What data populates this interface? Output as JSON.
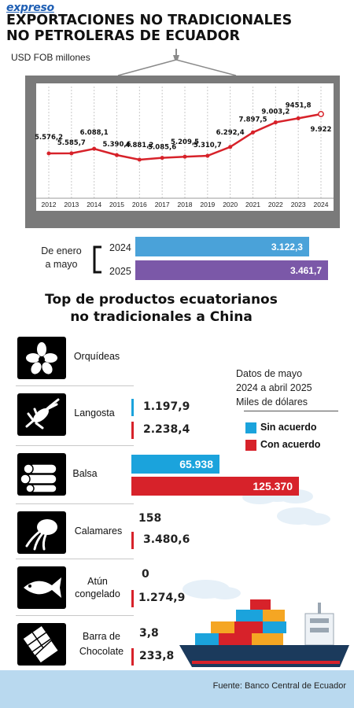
{
  "header": {
    "brand": "expreso",
    "title_line1": "EXPORTACIONES NO TRADICIONALES",
    "title_line2": "NO PETROLERAS DE ECUADOR"
  },
  "colors": {
    "line": "#d7222a",
    "frame": "#7a7a7a",
    "bar_2024": "#4aa2d9",
    "bar_2025": "#7b58a8",
    "sin_acuerdo": "#1ba3dc",
    "con_acuerdo": "#d7222a"
  },
  "chart_data": [
    {
      "type": "line",
      "ylabel": "USD FOB millones",
      "x": [
        "2012",
        "2013",
        "2014",
        "2015",
        "2016",
        "2017",
        "2018",
        "2019",
        "2020",
        "2021",
        "2022",
        "2023",
        "2024"
      ],
      "values": [
        5576.2,
        5585.7,
        6088.1,
        5390.6,
        4881.2,
        5085.6,
        5209.5,
        5310.7,
        6292.4,
        7897.5,
        9003.2,
        9451.8,
        9922
      ],
      "value_labels": [
        "5.576,2",
        "5.585,7",
        "6.088,1",
        "5.390,6",
        "4.881,2",
        "5.085,6",
        "5.209,5",
        "5.310,7",
        "6.292,4",
        "7.897,5",
        "9.003,2",
        "9451,8",
        "9.922"
      ],
      "grid": true
    },
    {
      "type": "bar",
      "orientation": "horizontal",
      "group_label_line1": "De enero",
      "group_label_line2": "a mayo",
      "categories": [
        "2024",
        "2025"
      ],
      "values": [
        3122.3,
        3461.7
      ],
      "value_labels": [
        "3.122,3",
        "3.461,7"
      ]
    },
    {
      "type": "bar",
      "orientation": "horizontal",
      "title_line1": "Top de productos ecuatorianos",
      "title_line2": "no tradicionales a China",
      "note_line1": "Datos de mayo",
      "note_line2": "2024 a abril 2025",
      "note_line3": "Miles de dólares",
      "legend": [
        "Sin acuerdo",
        "Con acuerdo"
      ],
      "legend_position": "right",
      "categories": [
        "Orquídeas",
        "Langosta",
        "Balsa",
        "Calamares",
        "Atún congelado",
        "Barra de Chocolate"
      ],
      "series": [
        {
          "name": "Sin acuerdo",
          "values": [
            null,
            1197.9,
            65938,
            158,
            0,
            3.8
          ],
          "labels": [
            "",
            "1.197,9",
            "65.938",
            "158",
            "0",
            "3,8"
          ]
        },
        {
          "name": "Con acuerdo",
          "values": [
            null,
            2238.4,
            125370,
            3480.6,
            1274.9,
            233.8
          ],
          "labels": [
            "",
            "2.238,4",
            "125.370",
            "3.480,6",
            "1.274,9",
            "233,8"
          ]
        }
      ]
    }
  ],
  "products": {
    "p0": "Orquídeas",
    "p1": "Langosta",
    "p2": "Balsa",
    "p3": "Calamares",
    "p4_line1": "Atún",
    "p4_line2": "congelado",
    "p5_line1": "Barra de",
    "p5_line2": "Chocolate"
  },
  "icons": [
    "orchid-icon",
    "lobster-icon",
    "balsa-logs-icon",
    "squid-icon",
    "tuna-icon",
    "chocolate-bar-icon"
  ],
  "footer": {
    "source": "Fuente: Banco Central de Ecuador"
  }
}
